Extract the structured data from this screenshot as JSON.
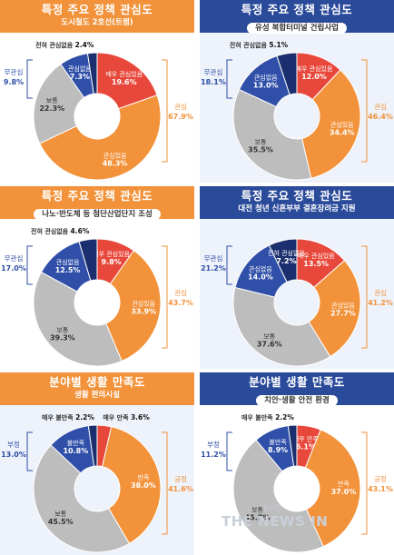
{
  "colors": {
    "very_positive": "#e8483b",
    "positive": "#f2923a",
    "neutral": "#bdbdbd",
    "negative": "#2f4fa8",
    "very_negative": "#1b2f6e",
    "label_dark": "#333333",
    "bracket_positive": "#f2923a",
    "bracket_negative": "#2f4fa8"
  },
  "watermark": {
    "text": "THE NEWS IN",
    "mark": "뉴스인"
  },
  "chart_data": [
    {
      "type": "pie",
      "theme": "orange",
      "title": "특정 주요 정책 관심도",
      "subtitle": "도시철도 2호선(트램)",
      "chip": false,
      "slices": [
        {
          "label": "매우 관심있음",
          "value": 19.6,
          "tone": "very_positive"
        },
        {
          "label": "관심있음",
          "value": 48.3,
          "tone": "positive"
        },
        {
          "label": "보통",
          "value": 22.3,
          "tone": "neutral"
        },
        {
          "label": "관심없음",
          "value": 7.3,
          "tone": "negative"
        },
        {
          "label": "전혀 관심없음",
          "value": 2.4,
          "tone": "very_negative"
        }
      ],
      "groups": [
        {
          "label": "관심",
          "value": 67.9,
          "side": "right"
        },
        {
          "label": "무관심",
          "value": 9.8,
          "side": "left"
        }
      ]
    },
    {
      "type": "pie",
      "theme": "blue",
      "title": "특정 주요 정책 관심도",
      "subtitle": "유성 복합터미널 건립사업",
      "chip": true,
      "slices": [
        {
          "label": "매우 관심있음",
          "value": 12.0,
          "tone": "very_positive"
        },
        {
          "label": "관심있음",
          "value": 34.4,
          "tone": "positive"
        },
        {
          "label": "보통",
          "value": 35.5,
          "tone": "neutral"
        },
        {
          "label": "관심없음",
          "value": 13.0,
          "tone": "negative"
        },
        {
          "label": "전혀 관심없음",
          "value": 5.1,
          "tone": "very_negative"
        }
      ],
      "groups": [
        {
          "label": "관심",
          "value": 46.4,
          "side": "right"
        },
        {
          "label": "무관심",
          "value": 18.1,
          "side": "left"
        }
      ]
    },
    {
      "type": "pie",
      "theme": "orange",
      "title": "특정 주요 정책 관심도",
      "subtitle": "나노·반도체 등 첨단산업단지 조성",
      "chip": true,
      "slices": [
        {
          "label": "매우 관심있음",
          "value": 9.8,
          "tone": "very_positive"
        },
        {
          "label": "관심있음",
          "value": 33.9,
          "tone": "positive"
        },
        {
          "label": "보통",
          "value": 39.3,
          "tone": "neutral"
        },
        {
          "label": "관심없음",
          "value": 12.5,
          "tone": "negative"
        },
        {
          "label": "전혀 관심없음",
          "value": 4.6,
          "tone": "very_negative"
        }
      ],
      "groups": [
        {
          "label": "관심",
          "value": 43.7,
          "side": "right"
        },
        {
          "label": "무관심",
          "value": 17.0,
          "side": "left"
        }
      ]
    },
    {
      "type": "pie",
      "theme": "blue",
      "title": "특정 주요 정책 관심도",
      "subtitle": "대전 청년 신혼부부 결혼장려금 지원",
      "chip": false,
      "slices": [
        {
          "label": "매우 관심있음",
          "value": 13.5,
          "tone": "very_positive"
        },
        {
          "label": "관심있음",
          "value": 27.7,
          "tone": "positive"
        },
        {
          "label": "보통",
          "value": 37.6,
          "tone": "neutral"
        },
        {
          "label": "관심없음",
          "value": 14.0,
          "tone": "negative"
        },
        {
          "label": "전혀 관심없음",
          "value": 7.2,
          "tone": "very_negative"
        }
      ],
      "groups": [
        {
          "label": "관심",
          "value": 41.2,
          "side": "right"
        },
        {
          "label": "무관심",
          "value": 21.2,
          "side": "left"
        }
      ]
    },
    {
      "type": "pie",
      "theme": "orange",
      "title": "분야별 생활 만족도",
      "subtitle": "생활 편의시설",
      "chip": false,
      "slices": [
        {
          "label": "매우 만족",
          "value": 3.6,
          "tone": "very_positive"
        },
        {
          "label": "만족",
          "value": 38.0,
          "tone": "positive"
        },
        {
          "label": "보통",
          "value": 45.5,
          "tone": "neutral"
        },
        {
          "label": "불만족",
          "value": 10.8,
          "tone": "negative"
        },
        {
          "label": "매우 불만족",
          "value": 2.2,
          "tone": "very_negative"
        }
      ],
      "groups": [
        {
          "label": "긍정",
          "value": 41.6,
          "side": "right"
        },
        {
          "label": "부정",
          "value": 13.0,
          "side": "left"
        }
      ]
    },
    {
      "type": "pie",
      "theme": "blue",
      "title": "분야별 생활 만족도",
      "subtitle": "치안·생활 안전 환경",
      "chip": true,
      "slices": [
        {
          "label": "매우 만족",
          "value": 6.1,
          "tone": "very_positive"
        },
        {
          "label": "만족",
          "value": 37.0,
          "tone": "positive"
        },
        {
          "label": "보통",
          "value": 45.7,
          "tone": "neutral"
        },
        {
          "label": "불만족",
          "value": 8.9,
          "tone": "negative"
        },
        {
          "label": "매우 불만족",
          "value": 2.2,
          "tone": "very_negative"
        }
      ],
      "groups": [
        {
          "label": "긍정",
          "value": 43.1,
          "side": "right"
        },
        {
          "label": "부정",
          "value": 11.2,
          "side": "left"
        }
      ]
    }
  ]
}
